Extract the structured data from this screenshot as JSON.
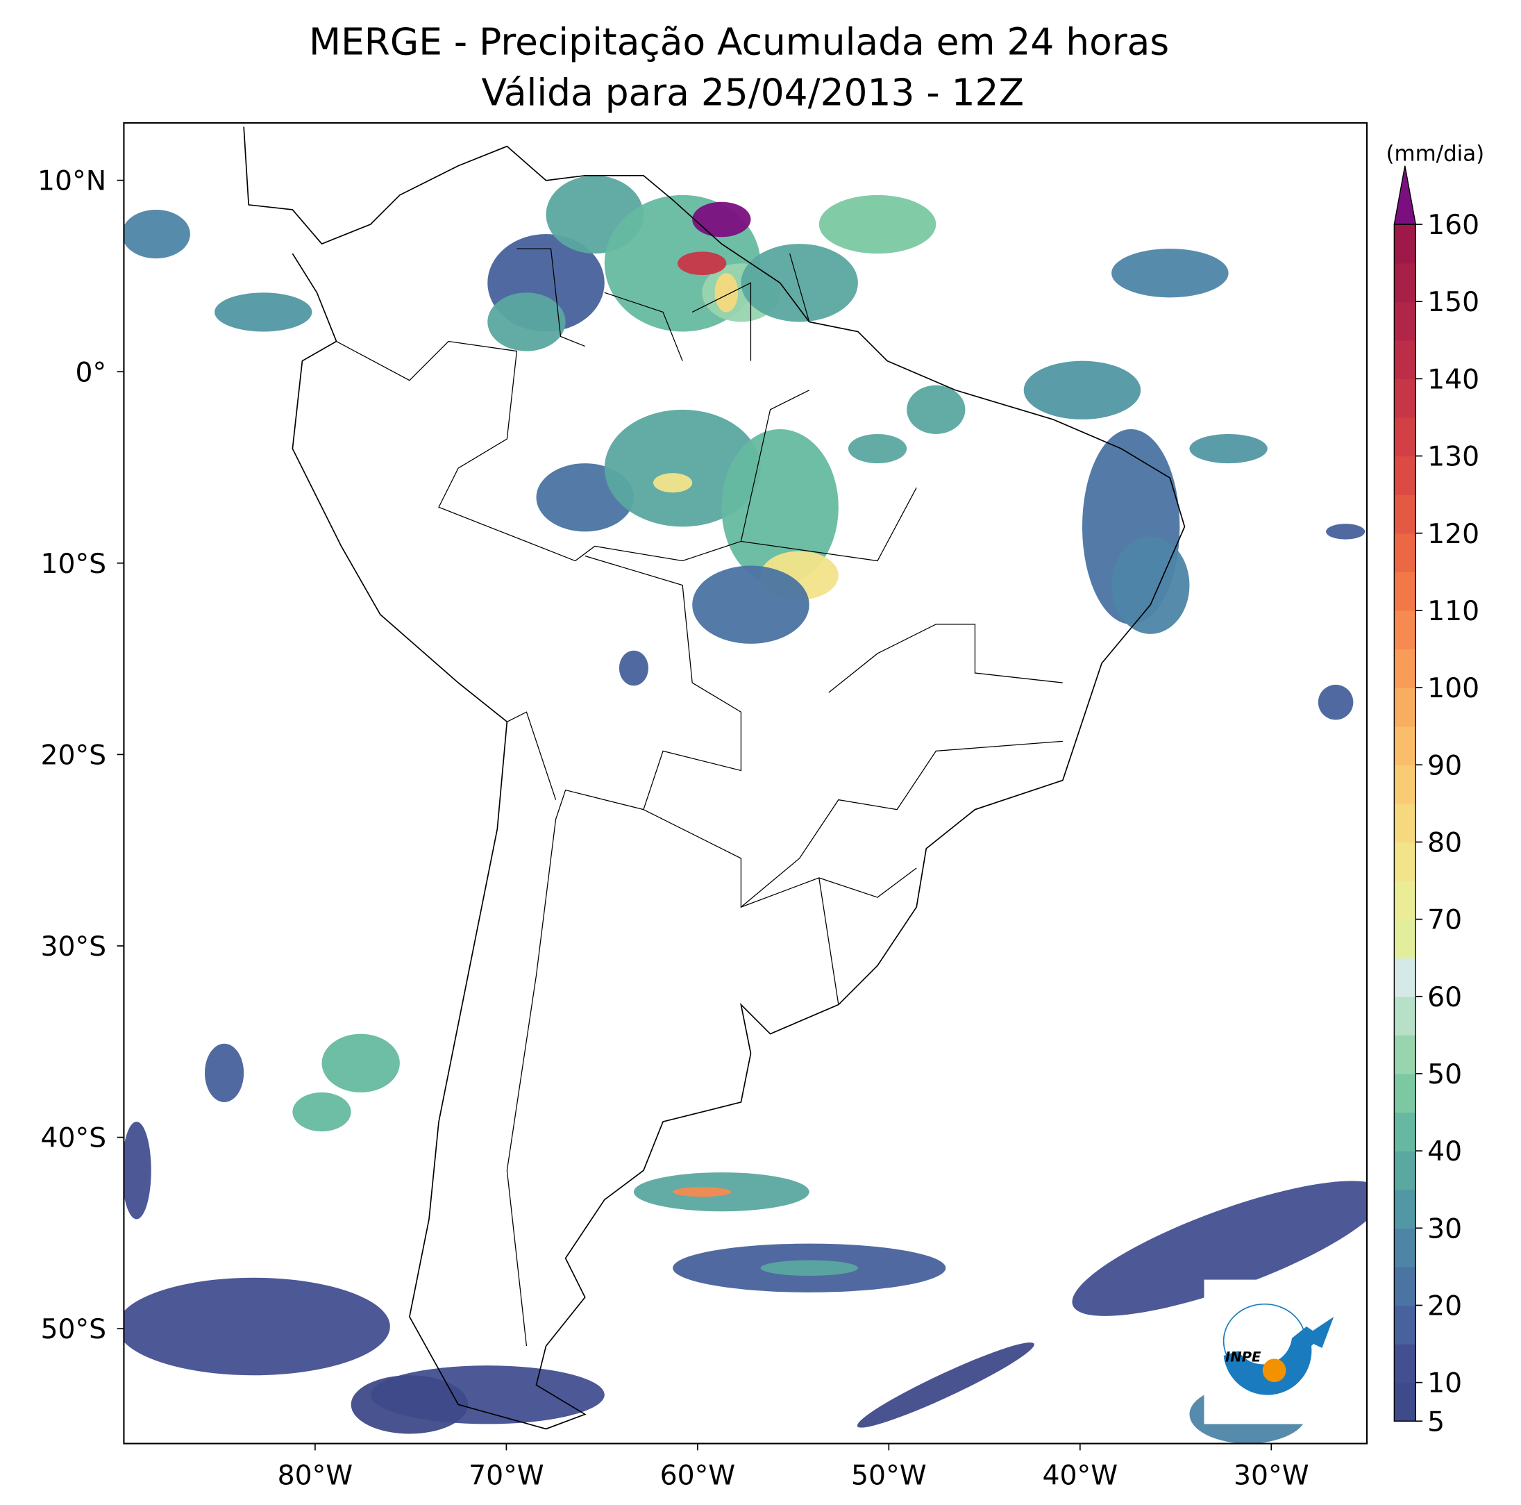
{
  "map": {
    "title": "MERGE - Precipitação Acumulada em 24 horas",
    "subtitle": "Válida para 25/04/2013 - 12Z",
    "xlim": [
      -90,
      -25
    ],
    "ylim": [
      -56,
      13
    ],
    "xticks": [
      {
        "value": -80,
        "label": "80°W"
      },
      {
        "value": -70,
        "label": "70°W"
      },
      {
        "value": -60,
        "label": "60°W"
      },
      {
        "value": -50,
        "label": "50°W"
      },
      {
        "value": -40,
        "label": "40°W"
      },
      {
        "value": -30,
        "label": "30°W"
      }
    ],
    "yticks": [
      {
        "value": 10,
        "label": "10°N"
      },
      {
        "value": 0,
        "label": "0°"
      },
      {
        "value": -10,
        "label": "10°S"
      },
      {
        "value": -20,
        "label": "20°S"
      },
      {
        "value": -30,
        "label": "30°S"
      },
      {
        "value": -40,
        "label": "40°S"
      },
      {
        "value": -50,
        "label": "50°S"
      }
    ],
    "colorbar": {
      "unit": "(mm/dia)",
      "lim": [
        5,
        160
      ],
      "ticks": [
        5,
        10,
        20,
        30,
        40,
        50,
        60,
        70,
        80,
        90,
        100,
        110,
        120,
        130,
        140,
        150,
        160
      ],
      "colors": [
        "#3e4a89",
        "#434f91",
        "#47629c",
        "#4b74a2",
        "#4e85a6",
        "#5297a4",
        "#5aa8a0",
        "#66b9a0",
        "#7bc8a2",
        "#98d4ae",
        "#b7e0c8",
        "#d5eae6",
        "#e2ee9c",
        "#ebec96",
        "#f2e48a",
        "#f6d97f",
        "#f9cc74",
        "#fabd6a",
        "#f9ad61",
        "#f89c58",
        "#f68a50",
        "#f27848",
        "#ec6844",
        "#e45943",
        "#dc4b43",
        "#d24045",
        "#c73647",
        "#bc2d48",
        "#b12548",
        "#a81f48",
        "#9e1848"
      ],
      "extend_color": "#7b0f7f"
    },
    "logo": "INPE"
  }
}
